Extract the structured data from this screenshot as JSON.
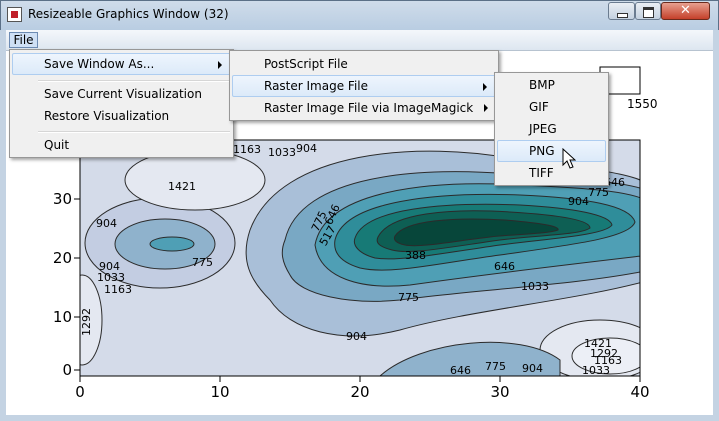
{
  "window": {
    "title": "Resizeable Graphics Window (32)"
  },
  "menubar": {
    "file": "File"
  },
  "file_menu": {
    "items": [
      "Save Window As...",
      "Save Current Visualization",
      "Restore Visualization",
      "Quit"
    ]
  },
  "save_submenu": {
    "items": [
      "PostScript File",
      "Raster Image File",
      "Raster Image File via ImageMagick"
    ]
  },
  "raster_submenu": {
    "items": [
      "BMP",
      "GIF",
      "JPEG",
      "PNG",
      "TIFF"
    ],
    "highlighted": "PNG"
  },
  "chart_data": {
    "type": "contour",
    "xlim": [
      0,
      40
    ],
    "ylim": [
      0,
      37
    ],
    "x_ticks": [
      "0",
      "10",
      "20",
      "30",
      "40"
    ],
    "y_ticks": [
      "0",
      "10",
      "20",
      "30"
    ],
    "colorbar_partial_label": "1550",
    "contour_labels": [
      "1421",
      "904",
      "904",
      "775",
      "1033",
      "1163",
      "1292",
      "1163",
      "1033",
      "904",
      "775",
      "646",
      "517",
      "388",
      "646",
      "775",
      "1033",
      "904",
      "646",
      "775",
      "904",
      "1033",
      "1163",
      "1292",
      "1421",
      "904",
      "775",
      "646"
    ],
    "colors": {
      "low": "#d4dbe9",
      "mid": "#4f9fb5",
      "high": "#07463a"
    }
  }
}
